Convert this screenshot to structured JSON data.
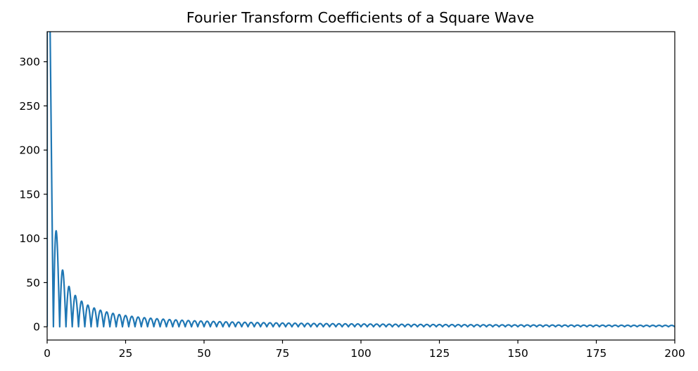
{
  "chart_data": {
    "type": "line",
    "title": "Fourier Transform Coefficients of a Square Wave",
    "xlabel": "",
    "ylabel": "",
    "xlim": [
      0,
      200
    ],
    "ylim": [
      -15,
      334
    ],
    "xticks": [
      0,
      25,
      50,
      75,
      100,
      125,
      150,
      175,
      200
    ],
    "yticks": [
      0,
      50,
      100,
      150,
      200,
      250,
      300
    ],
    "grid": false,
    "legend": false,
    "series": [
      {
        "color": "#1f77b4",
        "function": "abs(sin(pi*k/2)) * 1000/(pi*k), peak at odd k, zero at even k",
        "peak_values": [
          {
            "k": 1,
            "y": 318.3
          },
          {
            "k": 3,
            "y": 106.1
          },
          {
            "k": 5,
            "y": 63.7
          },
          {
            "k": 7,
            "y": 45.5
          },
          {
            "k": 9,
            "y": 35.4
          },
          {
            "k": 11,
            "y": 28.9
          },
          {
            "k": 13,
            "y": 24.5
          },
          {
            "k": 15,
            "y": 21.2
          },
          {
            "k": 17,
            "y": 18.7
          },
          {
            "k": 19,
            "y": 16.8
          },
          {
            "k": 21,
            "y": 15.2
          },
          {
            "k": 51,
            "y": 6.2
          },
          {
            "k": 101,
            "y": 3.2
          },
          {
            "k": 151,
            "y": 2.1
          },
          {
            "k": 199,
            "y": 1.6
          }
        ]
      }
    ]
  }
}
